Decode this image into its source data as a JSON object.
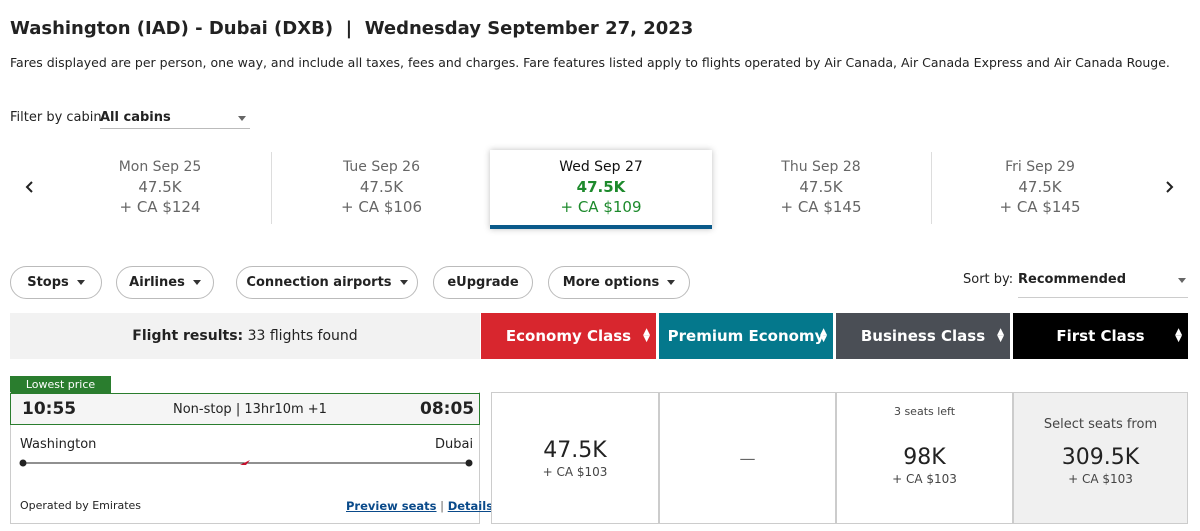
{
  "header": {
    "title": "Washington (IAD) - Dubai (DXB)  |  Wednesday September 27, 2023",
    "note": "Fares displayed are per person, one way, and include all taxes, fees and charges. Fare features listed apply to flights operated by Air Canada, Air Canada Express and Air Canada Rouge."
  },
  "filter": {
    "label": "Filter by cabin",
    "value": "All cabins"
  },
  "dates": [
    {
      "day": "Mon Sep 25",
      "points": "47.5K",
      "fee": "+ CA $124"
    },
    {
      "day": "Tue Sep 26",
      "points": "47.5K",
      "fee": "+ CA $106"
    },
    {
      "day": "Wed Sep 27",
      "points": "47.5K",
      "fee": "+ CA $109"
    },
    {
      "day": "Thu Sep 28",
      "points": "47.5K",
      "fee": "+ CA $145"
    },
    {
      "day": "Fri Sep 29",
      "points": "47.5K",
      "fee": "+ CA $145"
    }
  ],
  "filters": [
    "Stops",
    "Airlines",
    "Connection airports",
    "eUpgrade",
    "More options"
  ],
  "sort": {
    "label": "Sort by:",
    "value": "Recommended"
  },
  "results": {
    "label": "Flight results:",
    "count": "33 flights found"
  },
  "cabins": [
    "Economy Class",
    "Premium Economy",
    "Business Class",
    "First Class"
  ],
  "flight": {
    "badge": "Lowest price",
    "depart": "10:55",
    "info": "Non-stop | 13hr10m +1",
    "arrive": "08:05",
    "origin": "Washington",
    "destination": "Dubai",
    "operator": "Operated by Emirates",
    "links": [
      "Preview seats",
      "Details"
    ],
    "separator": "|",
    "fares": [
      {
        "points": "47.5K",
        "fee": "+ CA $103"
      },
      {
        "points": "—"
      },
      {
        "note": "3 seats left",
        "points": "98K",
        "fee": "+ CA $103"
      },
      {
        "note": "Select seats from",
        "points": "309.5K",
        "fee": "+ CA $103"
      }
    ]
  }
}
